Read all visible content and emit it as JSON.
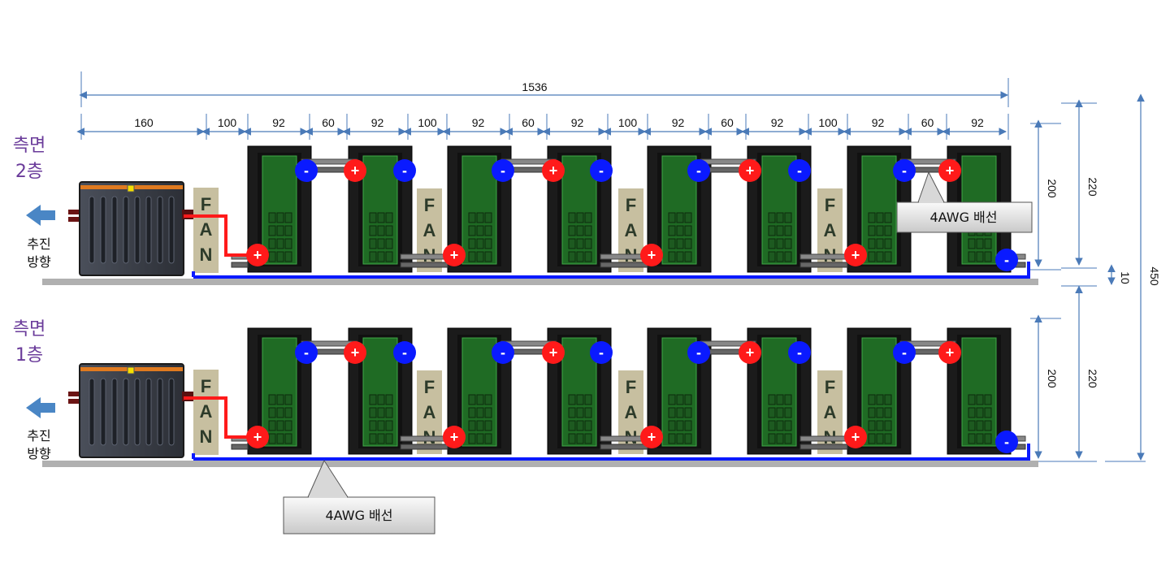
{
  "layers": [
    {
      "name": "측면\n2층",
      "direction": "추진\n방향"
    },
    {
      "name": "측면\n1층",
      "direction": "추진\n방향"
    }
  ],
  "dimensions": {
    "total": "1536",
    "segments": [
      "160",
      "100",
      "92",
      "60",
      "92",
      "100",
      "92",
      "60",
      "92",
      "100",
      "92",
      "60",
      "92",
      "100",
      "92",
      "60",
      "92"
    ],
    "right": {
      "upper_200": "200",
      "upper_220": "220",
      "gap_10": "10",
      "lower_200": "200",
      "lower_220": "220",
      "total_450": "450"
    }
  },
  "fan_text": [
    "F",
    "A",
    "N"
  ],
  "terminal_signs": {
    "plus": "+",
    "minus": "-"
  },
  "callouts": {
    "upper": "4AWG 배선",
    "lower": "4AWG 배선"
  },
  "colors": {
    "positive": "#ff1a1a",
    "negative": "#0a1aff",
    "wire_negative": "#0a1aff",
    "wire_positive": "#ff1a1a",
    "module_green": "#1f6b24",
    "frame_dark": "#222222",
    "fan": "#c7bfa0",
    "floor": "#b0b0b0",
    "layer_label": "#6a3b9a",
    "arrow": "#4a86c5",
    "dimension": "#4a7ab8"
  }
}
